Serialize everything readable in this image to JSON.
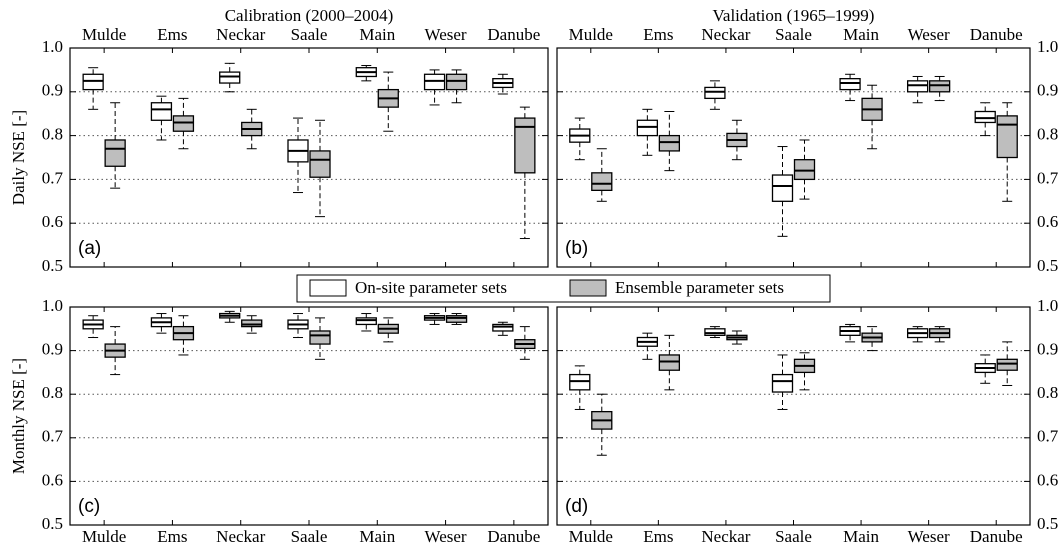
{
  "legend": [
    {
      "name": "On-site parameter sets",
      "color": "#ffffff"
    },
    {
      "name": "Ensemble parameter sets",
      "color": "#bebebe"
    }
  ],
  "chart_data": [
    {
      "type": "box",
      "title": "Calibration (2000–2004)",
      "ylabel": "Daily NSE [-]",
      "annotation": "(a)",
      "categories": [
        "Mulde",
        "Ems",
        "Neckar",
        "Saale",
        "Main",
        "Weser",
        "Danube"
      ],
      "ylim": [
        0.5,
        1
      ],
      "yticks": [
        0.5,
        0.6,
        0.7,
        0.8,
        0.9,
        {
          "value": 1,
          "label": "1.0"
        }
      ],
      "grid": true,
      "ytick_side": "left",
      "xtick_side": "top",
      "series": [
        {
          "color": "#ffffff",
          "whislo": [
            0.86,
            0.79,
            0.9,
            0.67,
            0.925,
            0.87,
            0.895
          ],
          "q1": [
            0.905,
            0.835,
            0.92,
            0.74,
            0.935,
            0.905,
            0.91
          ],
          "median": [
            0.925,
            0.86,
            0.935,
            0.765,
            0.945,
            0.925,
            0.92
          ],
          "q3": [
            0.94,
            0.875,
            0.945,
            0.79,
            0.955,
            0.94,
            0.93
          ],
          "whishi": [
            0.955,
            0.89,
            0.965,
            0.84,
            0.96,
            0.95,
            0.94
          ]
        },
        {
          "color": "#bebebe",
          "whislo": [
            0.68,
            0.77,
            0.77,
            0.615,
            0.81,
            0.875,
            0.565
          ],
          "q1": [
            0.73,
            0.81,
            0.8,
            0.705,
            0.865,
            0.905,
            0.715
          ],
          "median": [
            0.77,
            0.83,
            0.815,
            0.745,
            0.885,
            0.925,
            0.82
          ],
          "q3": [
            0.79,
            0.845,
            0.83,
            0.765,
            0.905,
            0.94,
            0.84
          ],
          "whishi": [
            0.875,
            0.885,
            0.86,
            0.835,
            0.945,
            0.95,
            0.865
          ]
        }
      ]
    },
    {
      "type": "box",
      "title": "Validation (1965–1999)",
      "annotation": "(b)",
      "categories": [
        "Mulde",
        "Ems",
        "Neckar",
        "Saale",
        "Main",
        "Weser",
        "Danube"
      ],
      "ylim": [
        0.5,
        1
      ],
      "yticks": [
        0.5,
        0.6,
        0.7,
        0.8,
        0.9,
        {
          "value": 1,
          "label": "1.0"
        }
      ],
      "grid": true,
      "ytick_side": "right",
      "xtick_side": "top",
      "series": [
        {
          "color": "#ffffff",
          "whislo": [
            0.745,
            0.755,
            0.86,
            0.57,
            0.88,
            0.875,
            0.8
          ],
          "q1": [
            0.785,
            0.8,
            0.885,
            0.65,
            0.905,
            0.9,
            0.83
          ],
          "median": [
            0.8,
            0.82,
            0.9,
            0.685,
            0.92,
            0.915,
            0.84
          ],
          "q3": [
            0.815,
            0.835,
            0.91,
            0.71,
            0.93,
            0.925,
            0.855
          ],
          "whishi": [
            0.84,
            0.86,
            0.925,
            0.775,
            0.94,
            0.935,
            0.875
          ]
        },
        {
          "color": "#bebebe",
          "whislo": [
            0.65,
            0.72,
            0.745,
            0.655,
            0.77,
            0.88,
            0.65
          ],
          "q1": [
            0.675,
            0.765,
            0.775,
            0.7,
            0.835,
            0.9,
            0.75
          ],
          "median": [
            0.69,
            0.785,
            0.79,
            0.72,
            0.86,
            0.915,
            0.825
          ],
          "q3": [
            0.715,
            0.8,
            0.805,
            0.745,
            0.885,
            0.925,
            0.845
          ],
          "whishi": [
            0.77,
            0.855,
            0.835,
            0.79,
            0.915,
            0.935,
            0.875
          ]
        }
      ]
    },
    {
      "type": "box",
      "ylabel": "Monthly NSE [-]",
      "annotation": "(c)",
      "categories": [
        "Mulde",
        "Ems",
        "Neckar",
        "Saale",
        "Main",
        "Weser",
        "Danube"
      ],
      "ylim": [
        0.5,
        1
      ],
      "yticks": [
        0.5,
        0.6,
        0.7,
        0.8,
        0.9,
        {
          "value": 1,
          "label": "1.0"
        }
      ],
      "grid": true,
      "ytick_side": "left",
      "xtick_side": "bottom",
      "series": [
        {
          "color": "#ffffff",
          "whislo": [
            0.93,
            0.94,
            0.965,
            0.93,
            0.945,
            0.96,
            0.935
          ],
          "q1": [
            0.95,
            0.955,
            0.975,
            0.95,
            0.96,
            0.97,
            0.945
          ],
          "median": [
            0.96,
            0.965,
            0.98,
            0.96,
            0.97,
            0.975,
            0.955
          ],
          "q3": [
            0.97,
            0.975,
            0.985,
            0.97,
            0.975,
            0.98,
            0.96
          ],
          "whishi": [
            0.98,
            0.985,
            0.99,
            0.985,
            0.985,
            0.985,
            0.965
          ]
        },
        {
          "color": "#bebebe",
          "whislo": [
            0.845,
            0.89,
            0.94,
            0.88,
            0.92,
            0.96,
            0.88
          ],
          "q1": [
            0.885,
            0.925,
            0.955,
            0.915,
            0.94,
            0.965,
            0.905
          ],
          "median": [
            0.9,
            0.94,
            0.96,
            0.935,
            0.95,
            0.975,
            0.915
          ],
          "q3": [
            0.915,
            0.955,
            0.97,
            0.945,
            0.96,
            0.98,
            0.925
          ],
          "whishi": [
            0.955,
            0.98,
            0.98,
            0.975,
            0.975,
            0.985,
            0.955
          ]
        }
      ]
    },
    {
      "type": "box",
      "annotation": "(d)",
      "categories": [
        "Mulde",
        "Ems",
        "Neckar",
        "Saale",
        "Main",
        "Weser",
        "Danube"
      ],
      "ylim": [
        0.5,
        1
      ],
      "yticks": [
        0.5,
        0.6,
        0.7,
        0.8,
        0.9,
        {
          "value": 1,
          "label": "1.0"
        }
      ],
      "grid": true,
      "ytick_side": "right",
      "xtick_side": "bottom",
      "series": [
        {
          "color": "#ffffff",
          "whislo": [
            0.765,
            0.88,
            0.93,
            0.765,
            0.92,
            0.92,
            0.825
          ],
          "q1": [
            0.81,
            0.91,
            0.935,
            0.805,
            0.935,
            0.93,
            0.85
          ],
          "median": [
            0.83,
            0.92,
            0.94,
            0.83,
            0.945,
            0.94,
            0.86
          ],
          "q3": [
            0.845,
            0.93,
            0.95,
            0.845,
            0.955,
            0.95,
            0.87
          ],
          "whishi": [
            0.865,
            0.94,
            0.955,
            0.89,
            0.96,
            0.955,
            0.89
          ]
        },
        {
          "color": "#bebebe",
          "whislo": [
            0.66,
            0.81,
            0.915,
            0.81,
            0.9,
            0.92,
            0.82
          ],
          "q1": [
            0.72,
            0.855,
            0.925,
            0.85,
            0.92,
            0.93,
            0.855
          ],
          "median": [
            0.74,
            0.875,
            0.93,
            0.865,
            0.93,
            0.94,
            0.87
          ],
          "q3": [
            0.76,
            0.89,
            0.935,
            0.88,
            0.94,
            0.95,
            0.88
          ],
          "whishi": [
            0.8,
            0.935,
            0.945,
            0.895,
            0.955,
            0.955,
            0.92
          ]
        }
      ]
    }
  ]
}
